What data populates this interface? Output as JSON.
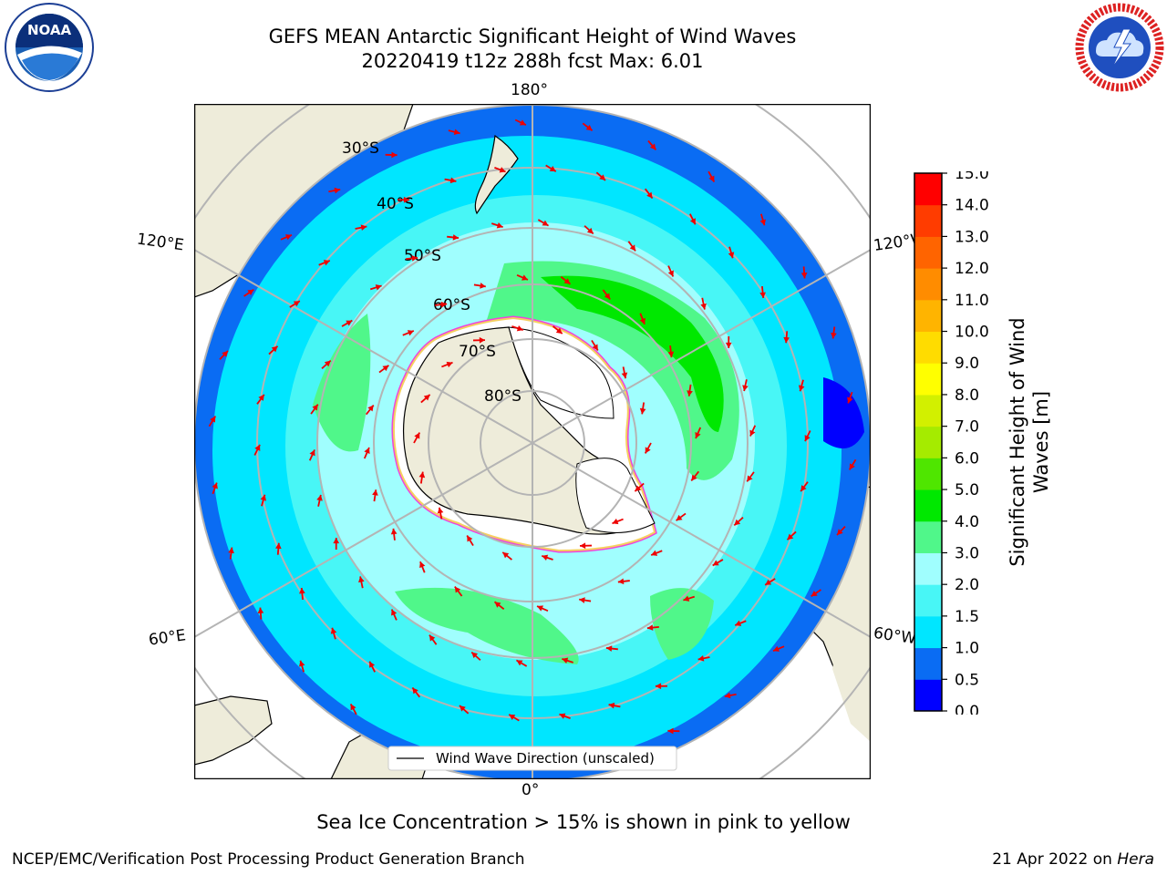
{
  "header": {
    "title_line1": "GEFS MEAN Antarctic Significant Height of Wind Waves",
    "title_line2": "20220419 t12z 288h fcst   Max: 6.01"
  },
  "logos": {
    "left": {
      "name": "noaa-logo",
      "text": "NOAA",
      "ring_text": "NATIONAL OCEANIC AND ATMOSPHERIC ADMINISTRATION · U.S. DEPARTMENT OF COMMERCE"
    },
    "right": {
      "name": "nws-logo",
      "ring_text": "NATIONAL WEATHER SERVICE"
    }
  },
  "map": {
    "projection": "south-polar-stereographic",
    "longitude_labels": [
      "180°",
      "0°",
      "120°E",
      "120°W",
      "60°E",
      "60°W"
    ],
    "latitude_labels": [
      "30°S",
      "40°S",
      "50°S",
      "60°S",
      "70°S",
      "80°S"
    ],
    "legend": "Wind Wave Direction (unscaled)",
    "colors": {
      "land": "#eeecda",
      "ice_edge": "#ee44dd",
      "ice_edge_inner": "#f5d060",
      "arrow": "#ee0000",
      "grid": "#b4b4b4"
    }
  },
  "colorbar": {
    "label": "Significant Height of Wind Waves [m]",
    "ticks": [
      "0.0",
      "0.5",
      "1.0",
      "1.5",
      "2.0",
      "3.0",
      "4.0",
      "5.0",
      "6.0",
      "7.0",
      "8.0",
      "9.0",
      "10.0",
      "11.0",
      "12.0",
      "13.0",
      "14.0",
      "15.0"
    ],
    "colors": [
      "#0000ff",
      "#0a6cf3",
      "#00e6ff",
      "#48f6f6",
      "#a0fefe",
      "#50f78a",
      "#00e800",
      "#4fe600",
      "#a5eb00",
      "#d2f000",
      "#ffff00",
      "#ffdc00",
      "#ffb400",
      "#ff8c00",
      "#ff6400",
      "#ff3c00",
      "#ff0000"
    ]
  },
  "note": "Sea Ice Concentration > 15% is shown in pink to yellow",
  "footer": {
    "left": "NCEP/EMC/Verification Post Processing Product Generation Branch",
    "right_date": "21 Apr 2022 on ",
    "right_host": "Hera"
  }
}
